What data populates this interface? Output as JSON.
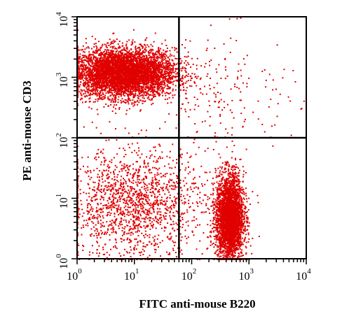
{
  "chart_data": {
    "type": "scatter",
    "subtype": "flow-cytometry-dot-plot",
    "xlabel": "FITC anti-mouse B220",
    "ylabel": "PE anti-mouse CD3",
    "xscale": "log",
    "yscale": "log",
    "xlim": [
      1,
      10000
    ],
    "ylim": [
      1,
      10000
    ],
    "x_ticks": [
      {
        "base": "10",
        "exp": "0"
      },
      {
        "base": "10",
        "exp": "1"
      },
      {
        "base": "10",
        "exp": "2"
      },
      {
        "base": "10",
        "exp": "3"
      },
      {
        "base": "10",
        "exp": "4"
      }
    ],
    "y_ticks": [
      {
        "base": "10",
        "exp": "0"
      },
      {
        "base": "10",
        "exp": "1"
      },
      {
        "base": "10",
        "exp": "2"
      },
      {
        "base": "10",
        "exp": "3"
      },
      {
        "base": "10",
        "exp": "4"
      }
    ],
    "quadrant_gate": {
      "x": 60,
      "y": 100
    },
    "point_color": "#e00000",
    "grid": false,
    "legend": "none",
    "populations": [
      {
        "label": "",
        "center_x": 6.5,
        "center_y": 1200,
        "spread_x_decades": 0.45,
        "spread_y_decades": 0.2,
        "count": 5200
      },
      {
        "label": "",
        "center_x": 450,
        "center_y": 5,
        "spread_x_decades": 0.12,
        "spread_y_decades": 0.35,
        "count": 3400
      },
      {
        "label": "",
        "center_x": 10,
        "center_y": 8,
        "spread_x_decades": 0.6,
        "spread_y_decades": 0.45,
        "count": 1600
      },
      {
        "label": "",
        "center_x": 400,
        "center_y": 600,
        "spread_x_decades": 0.6,
        "spread_y_decades": 0.5,
        "count": 180
      }
    ]
  }
}
